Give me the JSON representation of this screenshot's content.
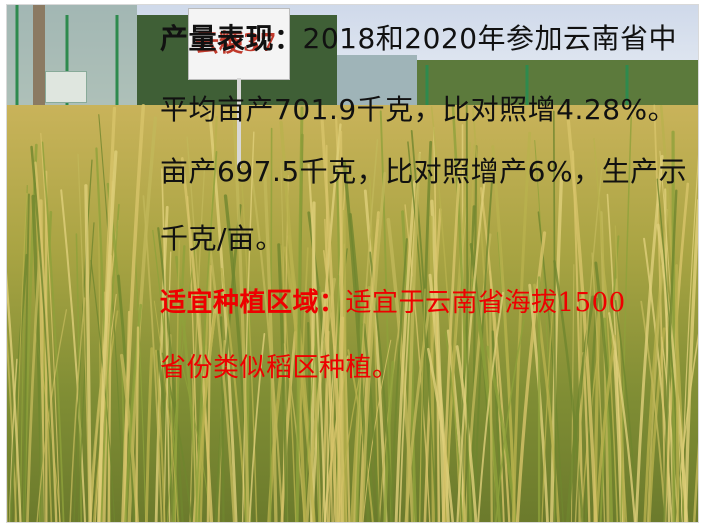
{
  "slide": {
    "lines": [
      {
        "heading": "产量表现：",
        "text": "2018和2020年参加云南省中"
      },
      {
        "heading": "",
        "text": "平均亩产701.9千克，比对照增4.28%。"
      },
      {
        "heading": "",
        "text": "亩产697.5千克，比对照增产6%，生产示"
      },
      {
        "heading": "",
        "text": "千克/亩。"
      },
      {
        "heading": "适宜种植区域：",
        "text": "适宜于云南省海拔1500"
      },
      {
        "heading": "",
        "text": "省份类似稻区种植。"
      }
    ],
    "colors": {
      "body_text": "#111111",
      "highlight_text": "#ee0000"
    }
  },
  "photo": {
    "subject": "rice-field",
    "sign_text": "云粳37"
  }
}
